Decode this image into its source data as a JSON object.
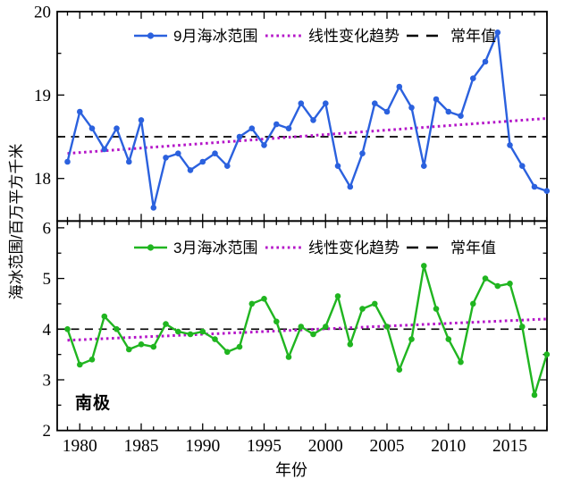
{
  "figure": {
    "background": "#ffffff",
    "ylabel": "海冰范围/百万平方千米",
    "xlabel": "年份",
    "annotation": "南极"
  },
  "x_axis": {
    "label": "年份",
    "major_ticks": [
      1980,
      1985,
      1990,
      1995,
      2000,
      2005,
      2010,
      2015
    ],
    "tick_labels": [
      "1980",
      "1985",
      "1990",
      "1995",
      "2000",
      "2005",
      "2010",
      "2015"
    ],
    "minor_step_years": 1,
    "range": [
      1978.16,
      2018.05
    ]
  },
  "chart_data": [
    {
      "type": "line",
      "panel": "top",
      "x": [
        1979,
        1980,
        1981,
        1982,
        1983,
        1984,
        1985,
        1986,
        1987,
        1988,
        1989,
        1990,
        1991,
        1992,
        1993,
        1994,
        1995,
        1996,
        1997,
        1998,
        1999,
        2000,
        2001,
        2002,
        2003,
        2004,
        2005,
        2006,
        2007,
        2008,
        2009,
        2010,
        2011,
        2012,
        2013,
        2014,
        2015,
        2016,
        2017,
        2018
      ],
      "series": [
        {
          "name": "9月海冰范围",
          "color": "#2b61de",
          "marker": "circle",
          "values": [
            18.2,
            18.8,
            18.6,
            18.35,
            18.6,
            18.2,
            18.7,
            17.65,
            18.25,
            18.3,
            18.1,
            18.2,
            18.3,
            18.15,
            18.5,
            18.6,
            18.4,
            18.65,
            18.6,
            18.9,
            18.7,
            18.9,
            18.15,
            17.9,
            18.3,
            18.9,
            18.8,
            19.1,
            18.85,
            18.15,
            18.95,
            18.8,
            18.75,
            19.2,
            19.4,
            19.75,
            18.4,
            18.15,
            17.9,
            17.85
          ]
        }
      ],
      "trend": {
        "name": "线性变化趋势",
        "color": "#b414c8",
        "style": "dotted",
        "start_value": 18.3,
        "end_value": 18.72
      },
      "normal": {
        "name": "常年值",
        "color": "#000000",
        "style": "dashed",
        "value": 18.5
      },
      "ylim": [
        17.49,
        20.0
      ],
      "yticks": [
        18,
        19,
        20
      ],
      "ytick_labels": [
        "18",
        "19",
        "20"
      ],
      "yminor_step": 0.5,
      "legend_position": "top-center"
    },
    {
      "type": "line",
      "panel": "bottom",
      "x": [
        1979,
        1980,
        1981,
        1982,
        1983,
        1984,
        1985,
        1986,
        1987,
        1988,
        1989,
        1990,
        1991,
        1992,
        1993,
        1994,
        1995,
        1996,
        1997,
        1998,
        1999,
        2000,
        2001,
        2002,
        2003,
        2004,
        2005,
        2006,
        2007,
        2008,
        2009,
        2010,
        2011,
        2012,
        2013,
        2014,
        2015,
        2016,
        2017,
        2018
      ],
      "series": [
        {
          "name": "3月海冰范围",
          "color": "#20b520",
          "marker": "circle",
          "values": [
            4.0,
            3.3,
            3.4,
            4.25,
            4.0,
            3.6,
            3.7,
            3.65,
            4.1,
            3.95,
            3.9,
            3.95,
            3.8,
            3.55,
            3.65,
            4.5,
            4.6,
            4.15,
            3.45,
            4.05,
            3.9,
            4.05,
            4.65,
            3.7,
            4.4,
            4.5,
            4.05,
            3.2,
            3.8,
            5.25,
            4.4,
            3.8,
            3.35,
            4.5,
            5.0,
            4.85,
            4.9,
            4.05,
            2.7,
            3.5
          ]
        }
      ],
      "trend": {
        "name": "线性变化趋势",
        "color": "#b414c8",
        "style": "dotted",
        "start_value": 3.78,
        "end_value": 4.2
      },
      "normal": {
        "name": "常年值",
        "color": "#000000",
        "style": "dashed",
        "value": 4.0
      },
      "ylim": [
        2.0,
        6.14
      ],
      "yticks": [
        2,
        3,
        4,
        5,
        6
      ],
      "ytick_labels": [
        "2",
        "3",
        "4",
        "5",
        "6"
      ],
      "yminor_step": 0.5,
      "legend_position": "top-center"
    }
  ]
}
